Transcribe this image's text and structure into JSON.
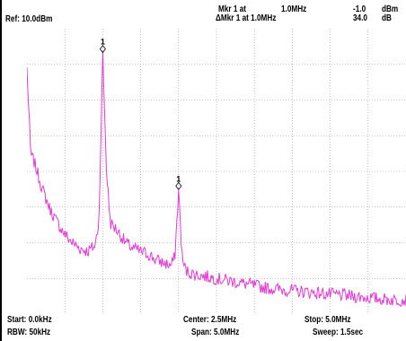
{
  "header": {
    "ref_label": "Ref: 10.0dBm",
    "marker_line1": "Mkr 1 at",
    "marker_line1_freq": "1.0MHz",
    "marker_line2": "ΔMkr 1 at 1.0MHz",
    "marker_value1": "-1.0",
    "marker_value2": "34.0",
    "marker_unit1": "dBm",
    "marker_unit2": "dB"
  },
  "footer": {
    "start": "Start: 0.0kHz",
    "center": "Center: 2.5MHz",
    "stop": "Stop: 5.0MHz",
    "rbw": "RBW: 50kHz",
    "span": "Span: 5.0MHz",
    "sweep": "Sweep: 1.5sec"
  },
  "chart_data": {
    "type": "line",
    "xlim": [
      0,
      5.0
    ],
    "x_unit": "MHz",
    "grid": true,
    "trace_color": "#e43ad6",
    "markers": [
      {
        "label": "1",
        "x": 1.0
      },
      {
        "label": "1",
        "x": 2.0
      }
    ],
    "series": [
      {
        "x": [
          0.0,
          0.05,
          0.1,
          0.2,
          0.3,
          0.4,
          0.5,
          0.6,
          0.7,
          0.8,
          0.9,
          0.95,
          1.0,
          1.05,
          1.1,
          1.2,
          1.3,
          1.4,
          1.5,
          1.6,
          1.7,
          1.8,
          1.9,
          1.95,
          2.0,
          2.05,
          2.1,
          2.2,
          2.4,
          2.6,
          2.8,
          3.0,
          3.2,
          3.4,
          3.6,
          3.8,
          4.0,
          4.2,
          4.4,
          4.6,
          4.8,
          5.0
        ],
        "values": [
          0.86,
          0.56,
          0.53,
          0.44,
          0.37,
          0.32,
          0.28,
          0.25,
          0.23,
          0.22,
          0.24,
          0.33,
          0.91,
          0.5,
          0.32,
          0.29,
          0.25,
          0.23,
          0.22,
          0.21,
          0.19,
          0.18,
          0.17,
          0.2,
          0.43,
          0.19,
          0.15,
          0.14,
          0.13,
          0.12,
          0.11,
          0.1,
          0.09,
          0.085,
          0.08,
          0.075,
          0.07,
          0.065,
          0.06,
          0.055,
          0.05,
          0.05
        ]
      }
    ]
  }
}
